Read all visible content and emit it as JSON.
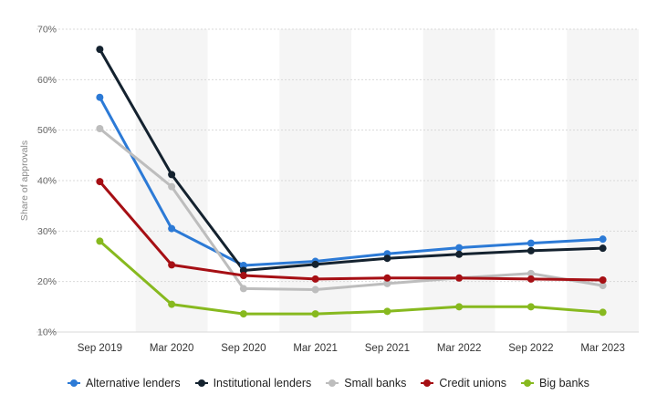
{
  "chart_data": {
    "type": "line",
    "title": "",
    "xlabel": "",
    "ylabel": "Share of approvals",
    "categories": [
      "Sep 2019",
      "Mar 2020",
      "Sep 2020",
      "Mar 2021",
      "Sep 2021",
      "Mar 2022",
      "Sep 2022",
      "Mar 2023"
    ],
    "y_ticks": [
      "10%",
      "20%",
      "30%",
      "40%",
      "50%",
      "60%",
      "70%"
    ],
    "ylim": [
      10,
      70
    ],
    "y_unit": "%",
    "grid": "horizontal",
    "legend_position": "bottom",
    "series": [
      {
        "name": "Alternative lenders",
        "color": "#2c7ad6",
        "values": [
          56.5,
          30.5,
          23.2,
          24.0,
          25.5,
          26.7,
          27.6,
          28.4
        ]
      },
      {
        "name": "Institutional lenders",
        "color": "#14222f",
        "values": [
          66.0,
          41.2,
          22.2,
          23.4,
          24.6,
          25.4,
          26.1,
          26.6
        ]
      },
      {
        "name": "Small banks",
        "color": "#bdbdbd",
        "values": [
          50.3,
          38.8,
          18.6,
          18.4,
          19.6,
          20.7,
          21.6,
          19.2
        ]
      },
      {
        "name": "Credit unions",
        "color": "#a60f14",
        "values": [
          39.8,
          23.3,
          21.2,
          20.5,
          20.7,
          20.7,
          20.5,
          20.3
        ]
      },
      {
        "name": "Big banks",
        "color": "#87b91f",
        "values": [
          28.0,
          15.5,
          13.6,
          13.6,
          14.1,
          15.0,
          15.0,
          13.9
        ]
      }
    ]
  }
}
